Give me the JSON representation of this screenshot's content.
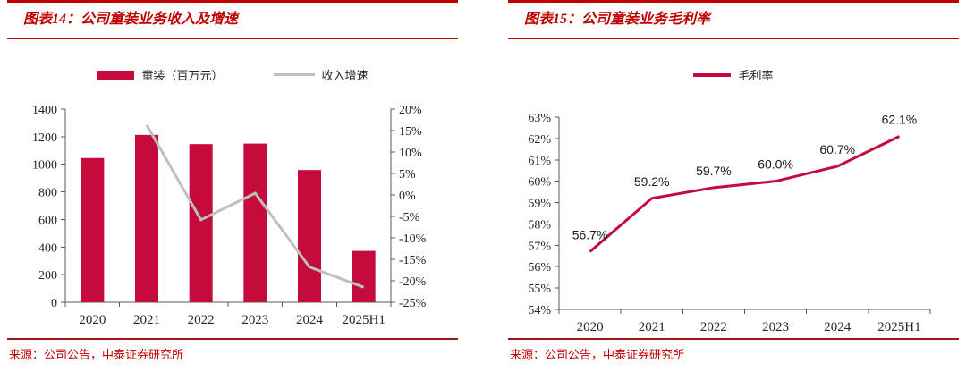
{
  "colors": {
    "accent_red": "#C00000",
    "rule_red": "#A31515",
    "crimson": "#C40B3B",
    "gray_line": "#BFBFBF",
    "axis_text": "#262626"
  },
  "chart_data": [
    {
      "type": "bar",
      "panel": "figure-14",
      "title": "图表14：公司童装业务收入及增速",
      "source": "来源：公司公告，中泰证券研究所",
      "categories": [
        "2020",
        "2021",
        "2022",
        "2023",
        "2024",
        "2025H1"
      ],
      "series": [
        {
          "kind": "bar",
          "name": "童装（百万元）",
          "axis": "left",
          "color": "#C40B3B",
          "values": [
            1045,
            1213,
            1146,
            1150,
            958,
            372
          ]
        },
        {
          "kind": "line",
          "name": "收入增速",
          "axis": "right",
          "color": "#BFBFBF",
          "values": [
            null,
            16.3,
            -5.8,
            0.4,
            -16.8,
            -21.5
          ]
        }
      ],
      "left_axis": {
        "min": 0,
        "max": 1400,
        "step": 200,
        "ticks": [
          "1400",
          "1200",
          "1000",
          "800",
          "600",
          "400",
          "200",
          "0"
        ]
      },
      "right_axis": {
        "min": -25,
        "max": 20,
        "step": 5,
        "ticks": [
          "20%",
          "15%",
          "10%",
          "5%",
          "0%",
          "-5%",
          "-10%",
          "-15%",
          "-20%",
          "-25%"
        ]
      },
      "legend_position": "top",
      "grid": false
    },
    {
      "type": "line",
      "panel": "figure-15",
      "title": "图表15：公司童装业务毛利率",
      "source": "来源：公司公告，中泰证券研究所",
      "categories": [
        "2020",
        "2021",
        "2022",
        "2023",
        "2024",
        "2025H1"
      ],
      "series": [
        {
          "kind": "line",
          "name": "毛利率",
          "color": "#C40B3B",
          "values": [
            56.7,
            59.2,
            59.7,
            60.0,
            60.7,
            62.1
          ],
          "point_labels": [
            "56.7%",
            "59.2%",
            "59.7%",
            "60.0%",
            "60.7%",
            "62.1%"
          ]
        }
      ],
      "y_axis": {
        "min": 54,
        "max": 63,
        "step": 1,
        "ticks": [
          "63%",
          "62%",
          "61%",
          "60%",
          "59%",
          "58%",
          "57%",
          "56%",
          "55%",
          "54%"
        ]
      },
      "legend_position": "top",
      "grid": false
    }
  ]
}
